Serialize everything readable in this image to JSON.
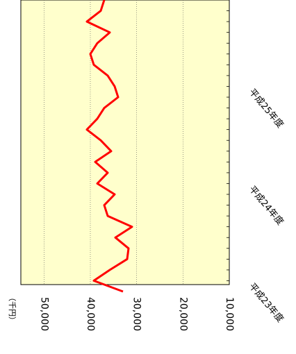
{
  "chart_data": {
    "type": "line",
    "unit_label": "（千円）",
    "categories": [
      null,
      "平成23年度",
      null,
      null,
      null,
      null,
      null,
      null,
      null,
      null,
      "平成24年度",
      null,
      null,
      null,
      null,
      null,
      null,
      null,
      null,
      "平成25年度",
      null,
      null,
      null,
      null,
      null,
      null,
      null,
      null
    ],
    "series": [
      {
        "name": null,
        "color": "#ff0000",
        "values": [
          32950,
          39250,
          35800,
          32050,
          31750,
          34600,
          31000,
          36250,
          37000,
          34750,
          38500,
          36250,
          38950,
          35500,
          37750,
          40750,
          38500,
          37000,
          34000,
          34750,
          36250,
          39250,
          40000,
          38500,
          35800,
          40750,
          37750,
          37000
        ]
      }
    ],
    "ylim": [
      10000,
      55000
    ],
    "yticks": [
      {
        "value": 10000,
        "label": "10,000"
      },
      {
        "value": 20000,
        "label": "20,000"
      },
      {
        "value": 30000,
        "label": "30,000"
      },
      {
        "value": 40000,
        "label": "40,000"
      },
      {
        "value": 50000,
        "label": "50,000"
      }
    ],
    "grid": true
  }
}
